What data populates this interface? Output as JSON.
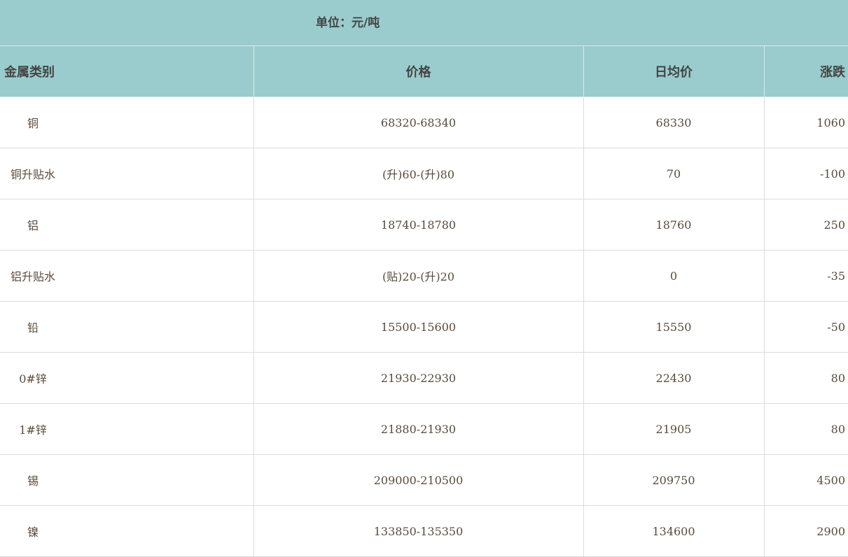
{
  "unit_label": "单位：元/吨",
  "headers": [
    "金属类别",
    "价格",
    "日均价",
    "涨跌"
  ],
  "rows": [
    {
      "name": "铜",
      "price": "68320-68340",
      "avg": "68330",
      "change": "1060"
    },
    {
      "name": "铜升贴水",
      "price": "(升)60-(升)80",
      "avg": "70",
      "change": "-100"
    },
    {
      "name": "铝",
      "price": "18740-18780",
      "avg": "18760",
      "change": "250"
    },
    {
      "name": "铝升贴水",
      "price": "(贴)20-(升)20",
      "avg": "0",
      "change": "-35"
    },
    {
      "name": "铅",
      "price": "15500-15600",
      "avg": "15550",
      "change": "-50"
    },
    {
      "name": "0#锌",
      "price": "21930-22930",
      "avg": "22430",
      "change": "80"
    },
    {
      "name": "1#锌",
      "price": "21880-21930",
      "avg": "21905",
      "change": "80"
    },
    {
      "name": "锡",
      "price": "209000-210500",
      "avg": "209750",
      "change": "4500"
    },
    {
      "name": "镍",
      "price": "133850-135350",
      "avg": "134600",
      "change": "2900"
    }
  ],
  "colors": {
    "header_bg": "#9acccd"
  }
}
